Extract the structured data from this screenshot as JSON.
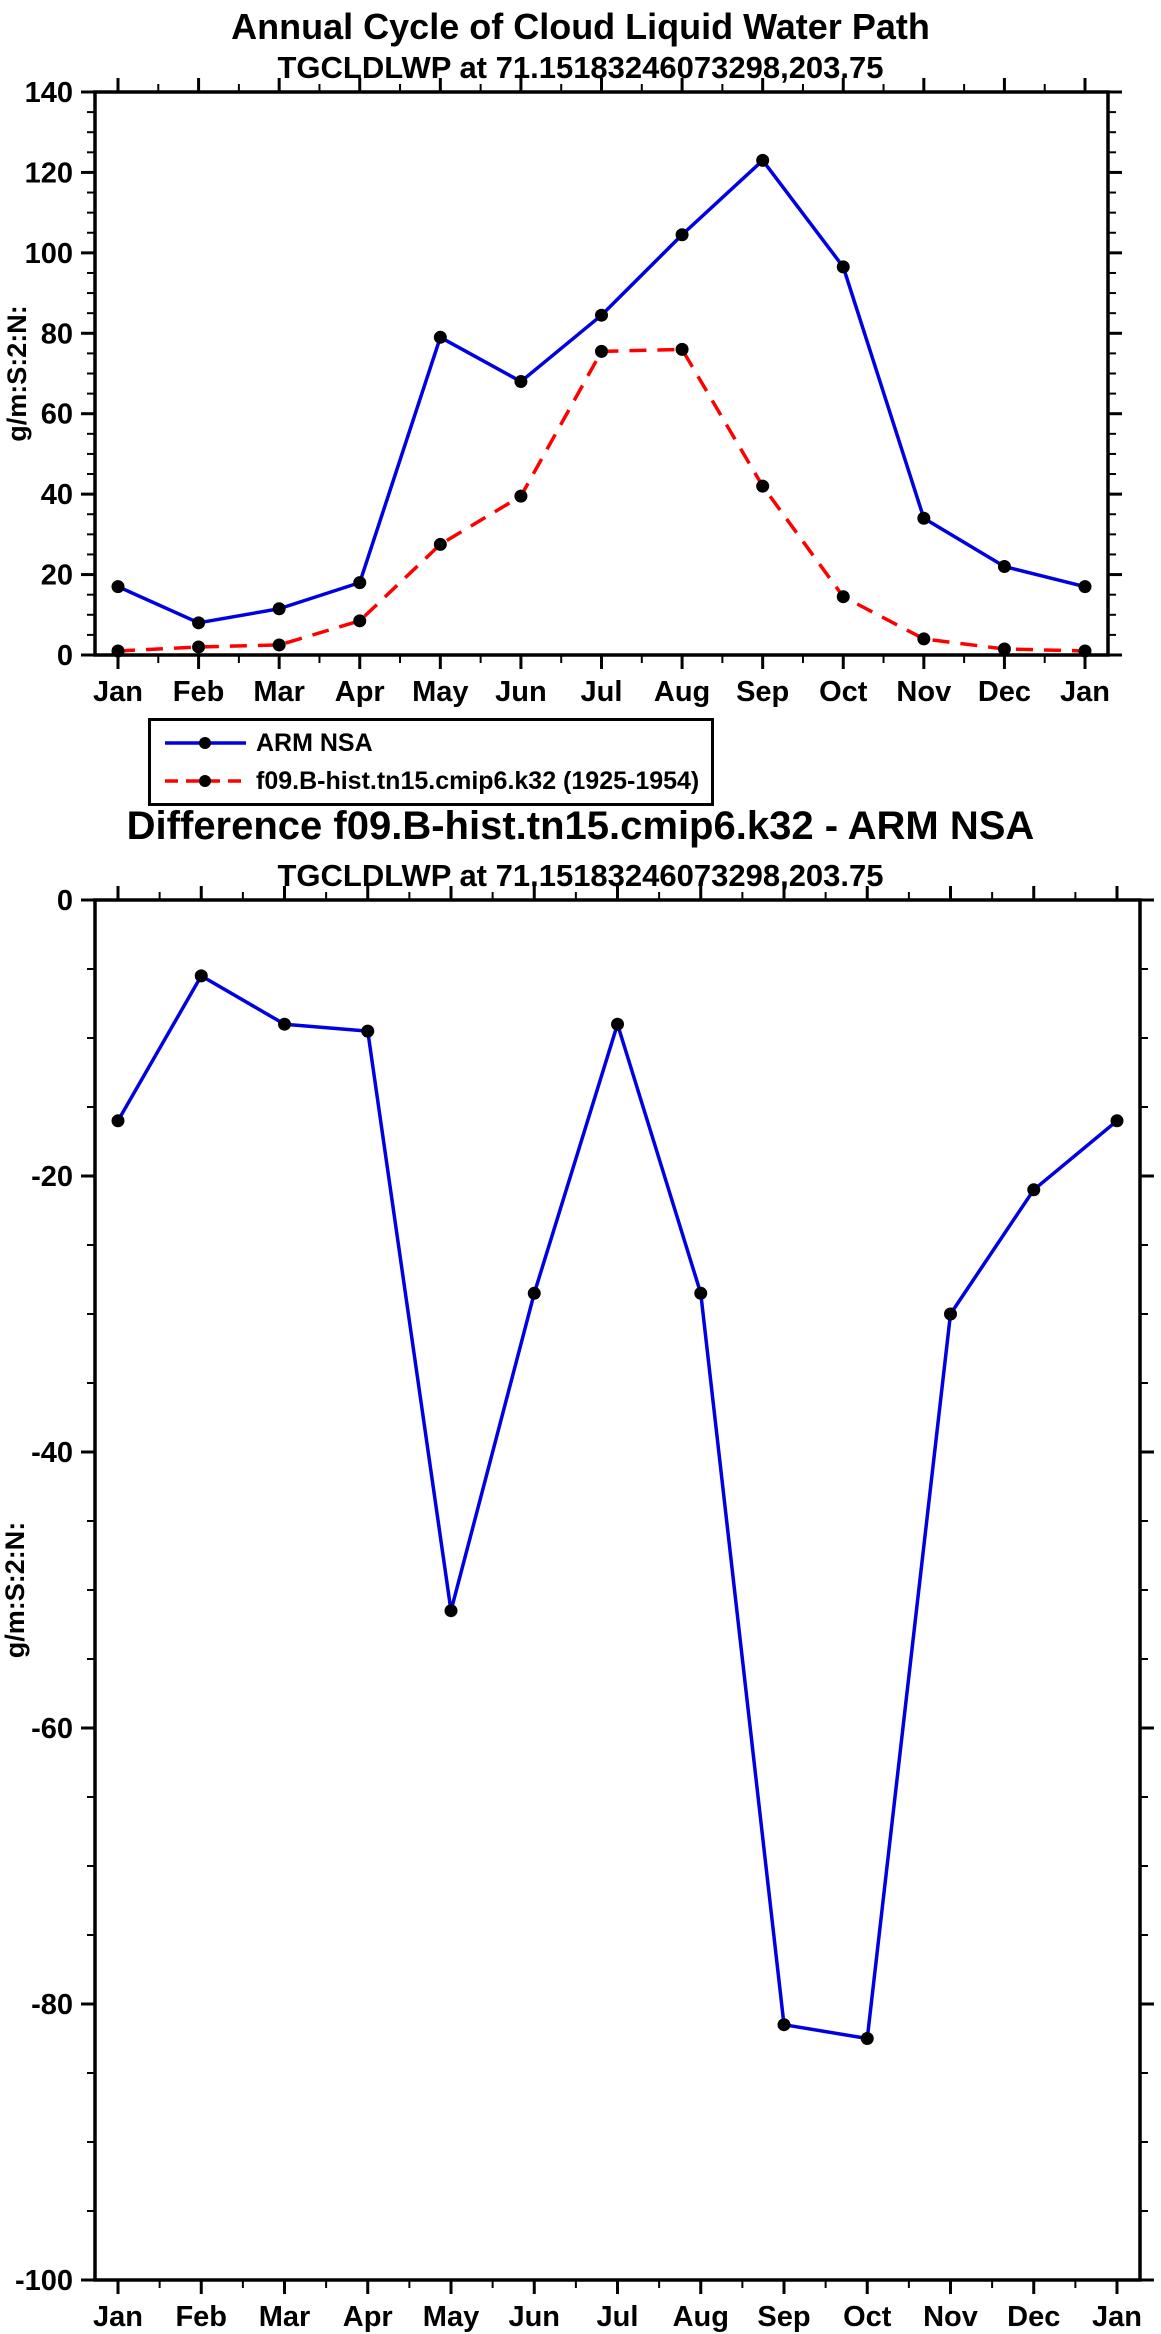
{
  "window": {
    "background": "#ffffff"
  },
  "colors": {
    "axis": "#000000",
    "marker": "#000000",
    "obs_line": "#0000e0",
    "model_line": "#ff0000"
  },
  "chart_data": [
    {
      "type": "line",
      "title": "Annual Cycle of Cloud Liquid Water Path",
      "subtitle": "TGCLDLWP at 71.15183246073298,203.75",
      "ylabel": "g/m:S:2:N:",
      "xlabel": "",
      "ylim": [
        0,
        140
      ],
      "ytick_step": 20,
      "ytick_minor_step": 5,
      "grid": false,
      "legend_position": "below-left",
      "categories": [
        "Jan",
        "Feb",
        "Mar",
        "Apr",
        "May",
        "Jun",
        "Jul",
        "Aug",
        "Sep",
        "Oct",
        "Nov",
        "Dec",
        "Jan"
      ],
      "series": [
        {
          "name": "ARM NSA",
          "color": "#0000e0",
          "line_style": "solid",
          "marker": "filled-circle",
          "marker_color": "#000000",
          "values": [
            17,
            8,
            11.5,
            18,
            79,
            68,
            84.5,
            104.5,
            123,
            96.5,
            34,
            22,
            17
          ]
        },
        {
          "name": "f09.B-hist.tn15.cmip6.k32 (1925-1954)",
          "color": "#ff0000",
          "line_style": "dashed",
          "marker": "filled-circle",
          "marker_color": "#000000",
          "values": [
            1,
            2,
            2.5,
            8.5,
            27.5,
            39.5,
            75.5,
            76,
            42,
            14.5,
            4,
            1.5,
            1
          ]
        }
      ]
    },
    {
      "type": "line",
      "title": "Difference f09.B-hist.tn15.cmip6.k32 - ARM NSA",
      "subtitle": "TGCLDLWP at 71.15183246073298,203.75",
      "ylabel": "g/m:S:2:N:",
      "xlabel": "",
      "ylim": [
        -100,
        0
      ],
      "ytick_step": 20,
      "ytick_minor_step": 5,
      "grid": false,
      "legend_position": "none",
      "categories": [
        "Jan",
        "Feb",
        "Mar",
        "Apr",
        "May",
        "Jun",
        "Jul",
        "Aug",
        "Sep",
        "Oct",
        "Nov",
        "Dec",
        "Jan"
      ],
      "series": [
        {
          "name": "Difference f09.B-hist.tn15.cmip6.k32 - ARM NSA",
          "color": "#0000e0",
          "line_style": "solid",
          "marker": "filled-circle",
          "marker_color": "#000000",
          "values": [
            -16,
            -5.5,
            -9,
            -9.5,
            -51.5,
            -28.5,
            -9,
            -28.5,
            -81.5,
            -82.5,
            -30,
            -21,
            -16
          ]
        }
      ]
    }
  ]
}
